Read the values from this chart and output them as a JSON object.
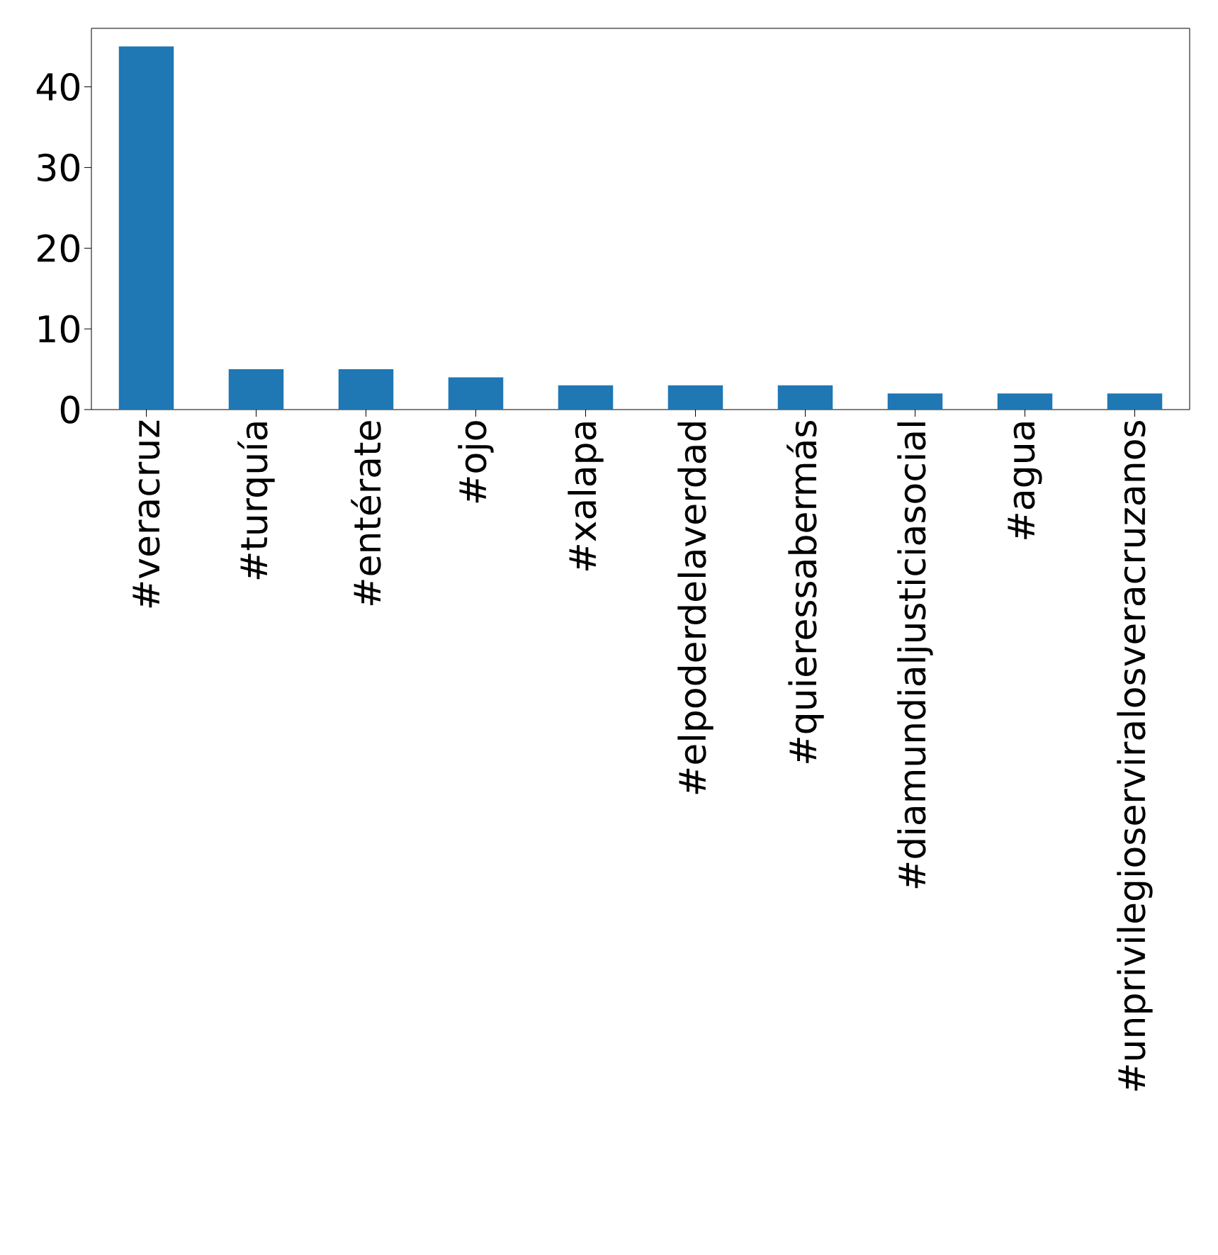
{
  "chart_data": {
    "type": "bar",
    "categories": [
      "#veracruz",
      "#turquía",
      "#entérate",
      "#ojo",
      "#xalapa",
      "#elpoderdelaverdad",
      "#quieressabermás",
      "#diamundialjusticiasocial",
      "#agua",
      "#unprivilegioserviralosveracruzanos"
    ],
    "values": [
      45,
      5,
      5,
      4,
      3,
      3,
      3,
      2,
      2,
      2
    ],
    "color": "#1f77b4",
    "ylim": [
      0,
      47.25
    ],
    "yticks": [
      0,
      10,
      20,
      30,
      40
    ]
  }
}
